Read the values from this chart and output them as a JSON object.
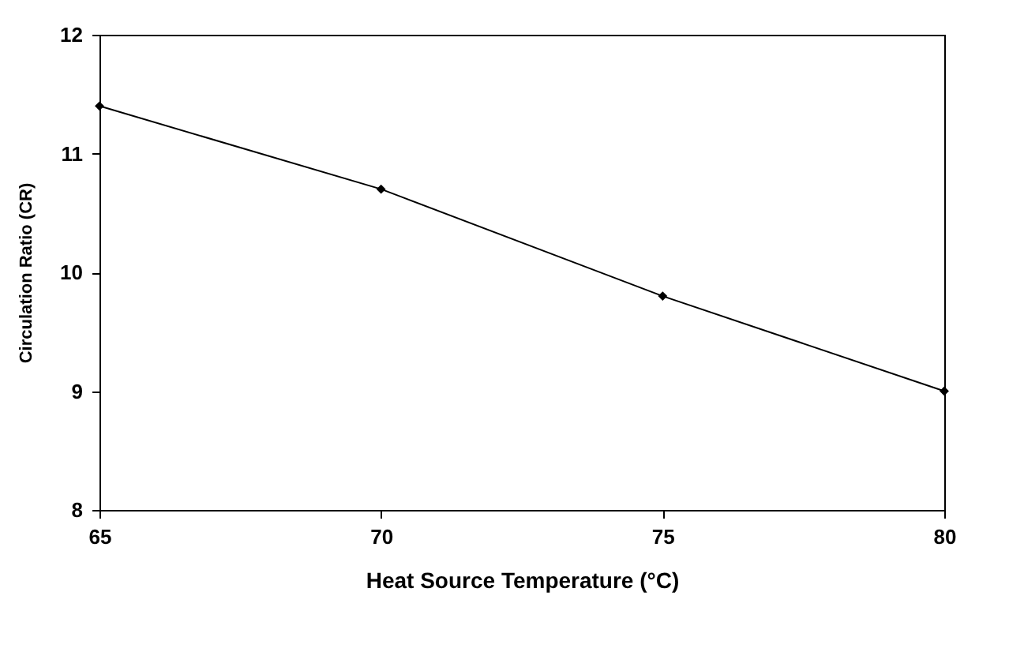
{
  "chart_data": {
    "type": "line",
    "xlabel": "Heat Source Temperature (°C)",
    "ylabel": "Circulation Ratio (CR)",
    "x": [
      65,
      70,
      75,
      80
    ],
    "series": [
      {
        "color": "#000000",
        "values": [
          11.4,
          10.7,
          9.8,
          9.0
        ]
      }
    ],
    "xlim": [
      65,
      80
    ],
    "xticks": [
      65,
      70,
      75,
      80
    ],
    "ylim": [
      8,
      12
    ],
    "yticks": [
      8,
      9,
      10,
      11,
      12
    ],
    "grid": false,
    "marker": "diamond",
    "line_style": "solid"
  }
}
